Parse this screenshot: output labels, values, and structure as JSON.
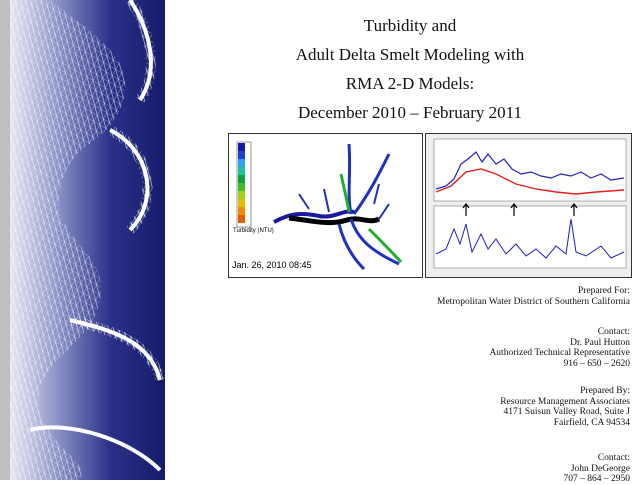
{
  "title": {
    "lines": [
      "Turbidity and",
      "Adult Delta Smelt Modeling with",
      "RMA 2-D Models:",
      "December 2010 – February 2011"
    ]
  },
  "figure": {
    "map": {
      "legend_title": "Turbidity (NTU)",
      "timestamp": "Jan. 26, 2010 08:45"
    }
  },
  "sections": [
    {
      "label": "Prepared For:",
      "lines": [
        "Metropolitan Water District of Southern California"
      ]
    },
    {
      "label": "Contact:",
      "lines": [
        "Dr. Paul Hutton",
        "Authorized Technical Representative",
        "916 – 650 – 2620"
      ]
    },
    {
      "label": "Prepared By:",
      "lines": [
        "Resource Management Associates",
        "4171 Suisun Valley Road, Suite J",
        "Fairfield, CA 94534"
      ]
    },
    {
      "label": "Contact:",
      "lines": [
        "John DeGeorge",
        "707 – 864 – 2950"
      ]
    }
  ]
}
